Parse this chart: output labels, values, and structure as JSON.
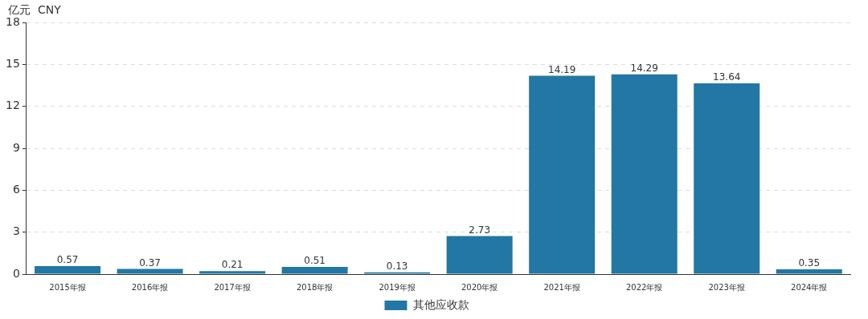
{
  "chart_data": {
    "type": "bar",
    "ylabel": "亿元  CNY",
    "categories": [
      "2015年报",
      "2016年报",
      "2017年报",
      "2018年报",
      "2019年报",
      "2020年报",
      "2021年报",
      "2022年报",
      "2023年报",
      "2024年报"
    ],
    "series": [
      {
        "name": "其他应收款",
        "color": "#2277a4",
        "values": [
          0.57,
          0.37,
          0.21,
          0.51,
          0.13,
          2.73,
          14.19,
          14.29,
          13.64,
          0.35
        ]
      }
    ],
    "ylim": [
      0,
      18
    ],
    "yticks": [
      0,
      3,
      6,
      9,
      12,
      15,
      18
    ],
    "grid": "y",
    "legend": "bottom",
    "data_labels": true
  }
}
